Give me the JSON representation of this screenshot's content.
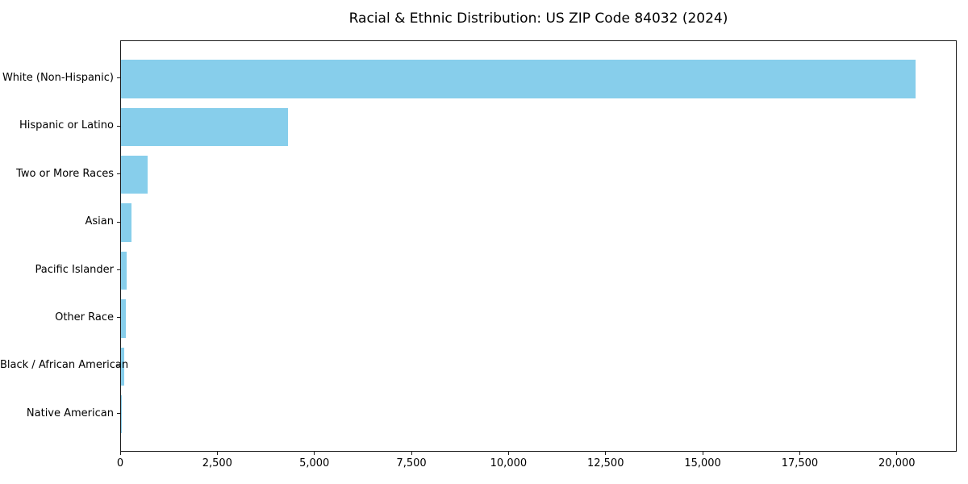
{
  "chart_data": {
    "type": "bar",
    "orientation": "horizontal",
    "title": "Racial & Ethnic Distribution: US ZIP Code 84032 (2024)",
    "categories": [
      "White (Non-Hispanic)",
      "Hispanic or Latino",
      "Two or More Races",
      "Asian",
      "Pacific Islander",
      "Other Race",
      "Black / African American",
      "Native American"
    ],
    "values": [
      20460,
      4290,
      690,
      280,
      150,
      125,
      90,
      10
    ],
    "xlabel": "",
    "ylabel": "",
    "xlim": [
      0,
      21500
    ],
    "x_ticks": [
      0,
      2500,
      5000,
      7500,
      10000,
      12500,
      15000,
      17500,
      20000
    ],
    "x_tick_labels": [
      "0",
      "2,500",
      "5,000",
      "7,500",
      "10,000",
      "12,500",
      "15,000",
      "17,500",
      "20,000"
    ],
    "bar_color": "#87CEEB",
    "grid": false,
    "legend_position": "none"
  }
}
